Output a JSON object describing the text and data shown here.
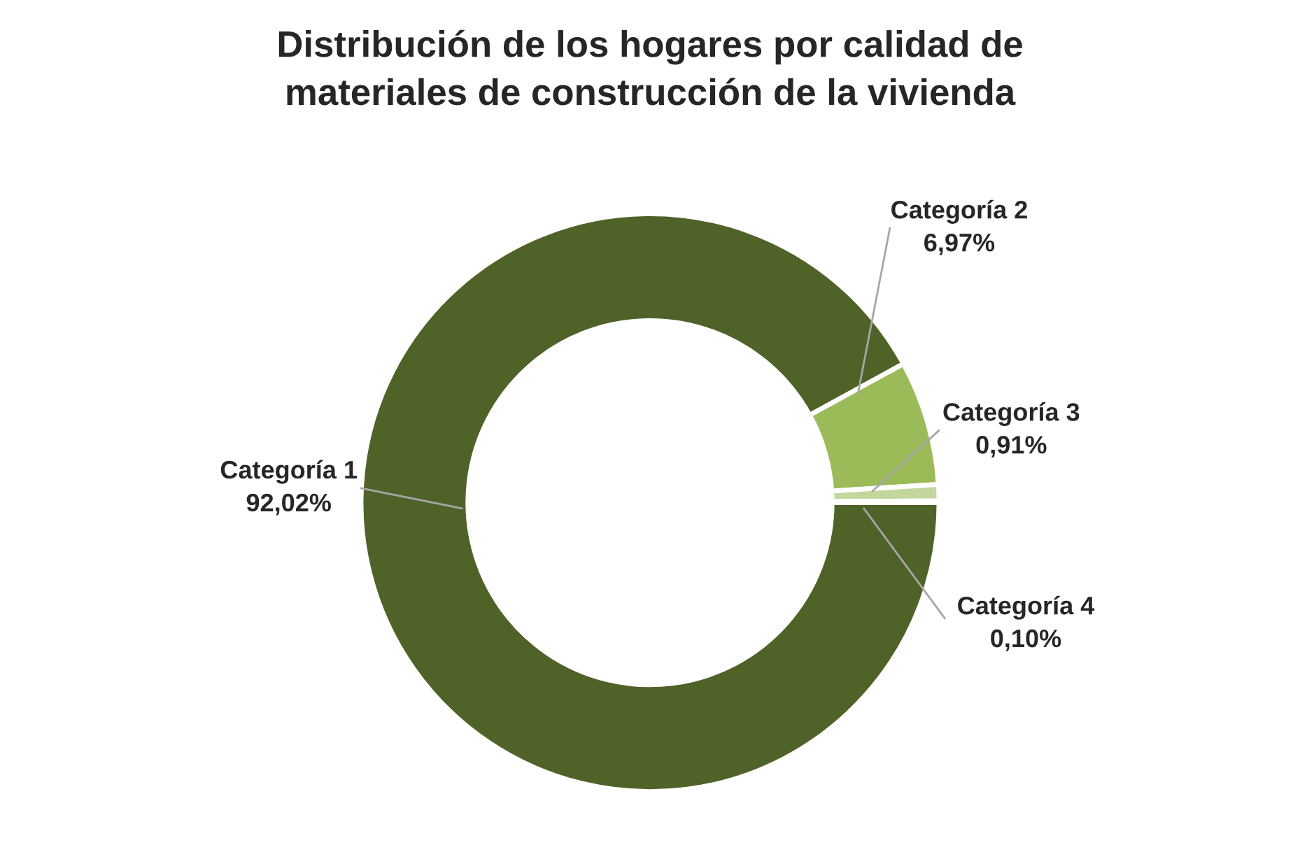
{
  "chart_data": {
    "type": "donut",
    "title": "Distribución de los hogares por calidad de\nmateriales de construcción de la vivienda",
    "categories": [
      "Categoría 1",
      "Categoría 2",
      "Categoría 3",
      "Categoría 4"
    ],
    "values": [
      92.02,
      6.97,
      0.91,
      0.1
    ],
    "value_labels": [
      "92,02%",
      "6,97%",
      "0,91%",
      "0,10%"
    ],
    "colors": [
      "#4f6228",
      "#9bbb59",
      "#c3d69b",
      "#d7e4bd"
    ],
    "legend": false
  }
}
